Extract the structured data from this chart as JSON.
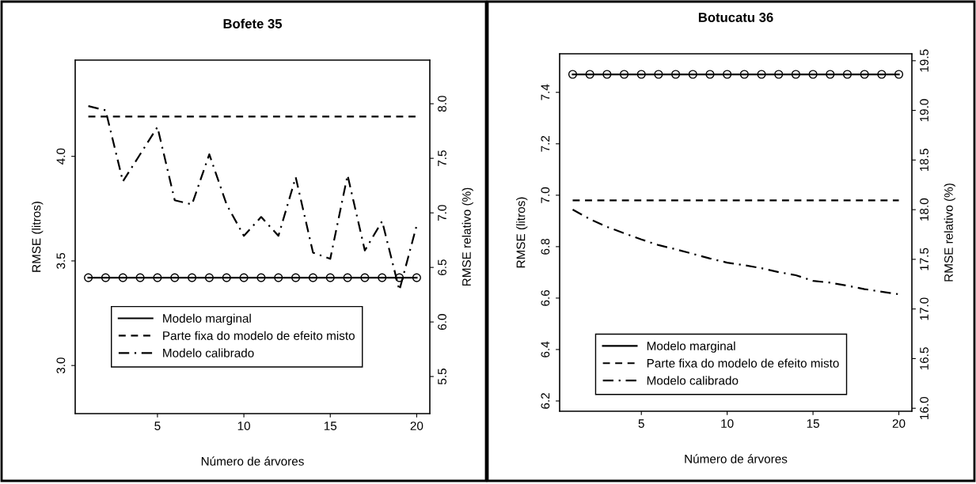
{
  "chart_data": [
    {
      "type": "line",
      "title": "Bofete 35",
      "xlabel": "Número de árvores",
      "ylabel": "RMSE (litros)",
      "y2label": "RMSE relativo (%)",
      "x": [
        1,
        2,
        3,
        4,
        5,
        6,
        7,
        8,
        9,
        10,
        11,
        12,
        13,
        14,
        15,
        16,
        17,
        18,
        19,
        20
      ],
      "series": [
        {
          "name": "Modelo marginal",
          "color": "#000000",
          "line_style": "solid",
          "marker": "circle",
          "values": [
            3.42,
            3.42,
            3.42,
            3.42,
            3.42,
            3.42,
            3.42,
            3.42,
            3.42,
            3.42,
            3.42,
            3.42,
            3.42,
            3.42,
            3.42,
            3.42,
            3.42,
            3.42,
            3.42,
            3.42
          ]
        },
        {
          "name": "Parte fixa do modelo de efeito misto",
          "color": "#000000",
          "line_style": "dashed",
          "marker": "none",
          "values": [
            4.19,
            4.19,
            4.19,
            4.19,
            4.19,
            4.19,
            4.19,
            4.19,
            4.19,
            4.19,
            4.19,
            4.19,
            4.19,
            4.19,
            4.19,
            4.19,
            4.19,
            4.19,
            4.19,
            4.19
          ]
        },
        {
          "name": "Modelo calibrado",
          "color": "#000000",
          "line_style": "dashdot",
          "marker": "none",
          "values": [
            4.24,
            4.22,
            3.88,
            4.01,
            4.14,
            3.79,
            3.77,
            4.01,
            3.77,
            3.62,
            3.71,
            3.62,
            3.9,
            3.54,
            3.51,
            3.91,
            3.55,
            3.69,
            3.36,
            3.67
          ]
        }
      ],
      "xlim": [
        0.24,
        20.76
      ],
      "xticks": [
        5,
        10,
        15,
        20
      ],
      "ylim": [
        2.77,
        4.46
      ],
      "yticks": [
        {
          "value": 3,
          "label": "3.0"
        },
        3.5,
        {
          "value": 4,
          "label": "4.0"
        }
      ],
      "y2lim": [
        5.16,
        8.4
      ],
      "y2ticks": [
        5.5,
        {
          "value": 6,
          "label": "6.0"
        },
        6.5,
        {
          "value": 7,
          "label": "7.0"
        },
        7.5,
        {
          "value": 8,
          "label": "8.0"
        }
      ],
      "grid": false,
      "legend": "bottom left"
    },
    {
      "type": "line",
      "title": "Botucatu 36",
      "xlabel": "Número de árvores",
      "ylabel": "RMSE (litros)",
      "y2label": "RMSE relativo (%)",
      "x": [
        1,
        2,
        3,
        4,
        5,
        6,
        7,
        8,
        9,
        10,
        11,
        12,
        13,
        14,
        15,
        16,
        17,
        18,
        19,
        20
      ],
      "series": [
        {
          "name": "Modelo marginal",
          "color": "#000000",
          "line_style": "solid",
          "marker": "circle",
          "values": [
            7.47,
            7.47,
            7.47,
            7.47,
            7.47,
            7.47,
            7.47,
            7.47,
            7.47,
            7.47,
            7.47,
            7.47,
            7.47,
            7.47,
            7.47,
            7.47,
            7.47,
            7.47,
            7.47,
            7.47
          ]
        },
        {
          "name": "Parte fixa do modelo de efeito misto",
          "color": "#000000",
          "line_style": "dashed",
          "marker": "none",
          "values": [
            6.98,
            6.98,
            6.98,
            6.98,
            6.98,
            6.98,
            6.98,
            6.98,
            6.98,
            6.98,
            6.98,
            6.98,
            6.98,
            6.98,
            6.98,
            6.98,
            6.98,
            6.98,
            6.98,
            6.98
          ]
        },
        {
          "name": "Modelo calibrado",
          "color": "#000000",
          "line_style": "dashdot",
          "marker": "none",
          "values": [
            6.944,
            6.907,
            6.877,
            6.852,
            6.828,
            6.806,
            6.79,
            6.772,
            6.754,
            6.738,
            6.728,
            6.716,
            6.701,
            6.689,
            6.667,
            6.66,
            6.648,
            6.635,
            6.625,
            6.615
          ]
        }
      ],
      "xlim": [
        0.24,
        20.76
      ],
      "xticks": [
        5,
        10,
        15,
        20
      ],
      "ylim": [
        6.16,
        7.55
      ],
      "yticks": [
        6.2,
        6.4,
        6.6,
        6.8,
        {
          "value": 7,
          "label": "7.0"
        },
        7.2,
        7.4
      ],
      "y2lim": [
        15.97,
        19.57
      ],
      "y2ticks": [
        {
          "value": 16,
          "label": "16.0"
        },
        16.5,
        {
          "value": 17,
          "label": "17.0"
        },
        17.5,
        {
          "value": 18,
          "label": "18.0"
        },
        18.5,
        {
          "value": 19,
          "label": "19.0"
        },
        19.5
      ],
      "grid": false,
      "legend": "bottom left"
    }
  ]
}
